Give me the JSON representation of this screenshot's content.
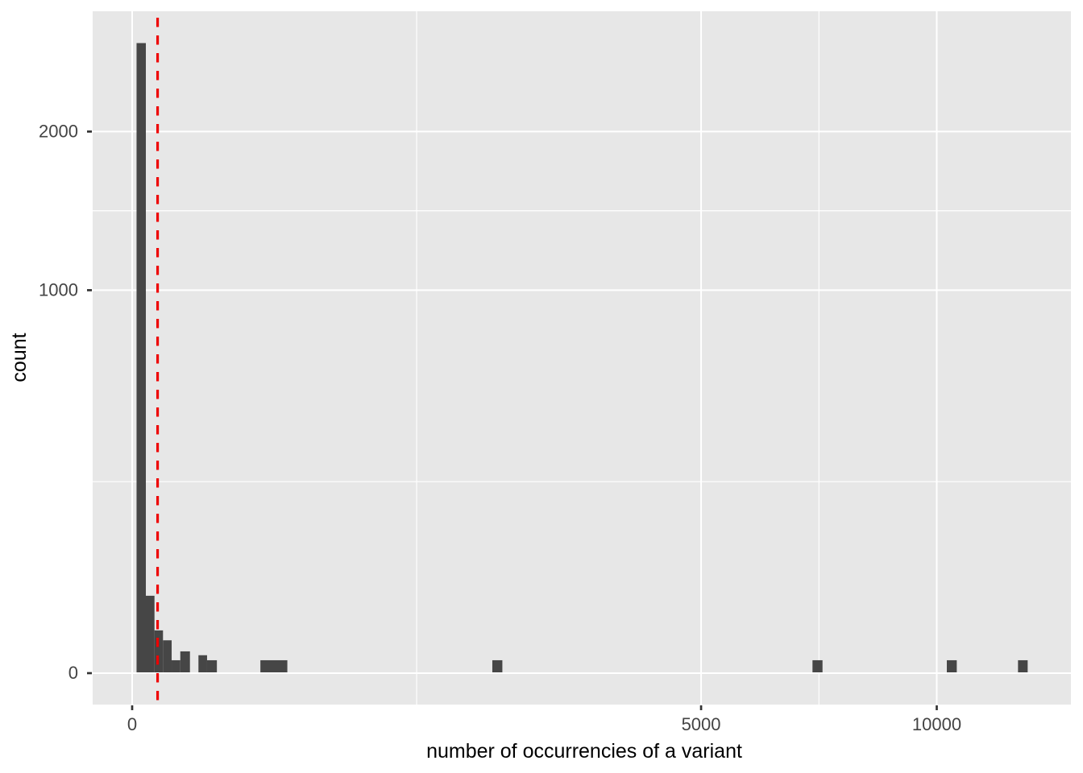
{
  "figure": {
    "background": "#FFFFFF"
  },
  "chart_data": {
    "type": "bar",
    "subtype": "histogram",
    "title": "",
    "xlabel": "number of occurrencies of a variant",
    "ylabel": "count",
    "x_scale": "sqrt",
    "y_scale": "sqrt",
    "x_axis": {
      "tick_values": [
        0,
        5000,
        10000
      ],
      "tick_labels": [
        "0",
        "5000",
        "10000"
      ],
      "minor_tick_values": [
        1250,
        7286
      ]
    },
    "y_axis": {
      "tick_values": [
        0,
        1000,
        2000
      ],
      "tick_labels": [
        "0",
        "1000",
        "2000"
      ],
      "minor_tick_values": [
        250,
        1458
      ]
    },
    "bars": [
      {
        "from": 0.3,
        "to": 2.9,
        "count": 2700
      },
      {
        "from": 2.9,
        "to": 7.7,
        "count": 40
      },
      {
        "from": 7.7,
        "to": 14.7,
        "count": 12
      },
      {
        "from": 14.7,
        "to": 24.1,
        "count": 7
      },
      {
        "from": 24.1,
        "to": 35.8,
        "count": 1
      },
      {
        "from": 35.8,
        "to": 51.6,
        "count": 3
      },
      {
        "from": 67.9,
        "to": 86.7,
        "count": 2
      },
      {
        "from": 86.7,
        "to": 110.9,
        "count": 1
      },
      {
        "from": 254,
        "to": 372,
        "count": 1
      },
      {
        "from": 2004,
        "to": 2117,
        "count": 1
      },
      {
        "from": 7150,
        "to": 7362,
        "count": 1
      },
      {
        "from": 10252,
        "to": 10504,
        "count": 1
      },
      {
        "from": 12122,
        "to": 12388,
        "count": 1
      }
    ],
    "vline": {
      "x": 10,
      "style": "dashed",
      "color": "#EE0000"
    },
    "colors": {
      "bar": "#464646",
      "panel_background": "#E7E7E7",
      "grid": "#FFFFFF",
      "tick_text": "#444444",
      "axis_title": "#000000",
      "tick_mark": "#333333"
    }
  }
}
